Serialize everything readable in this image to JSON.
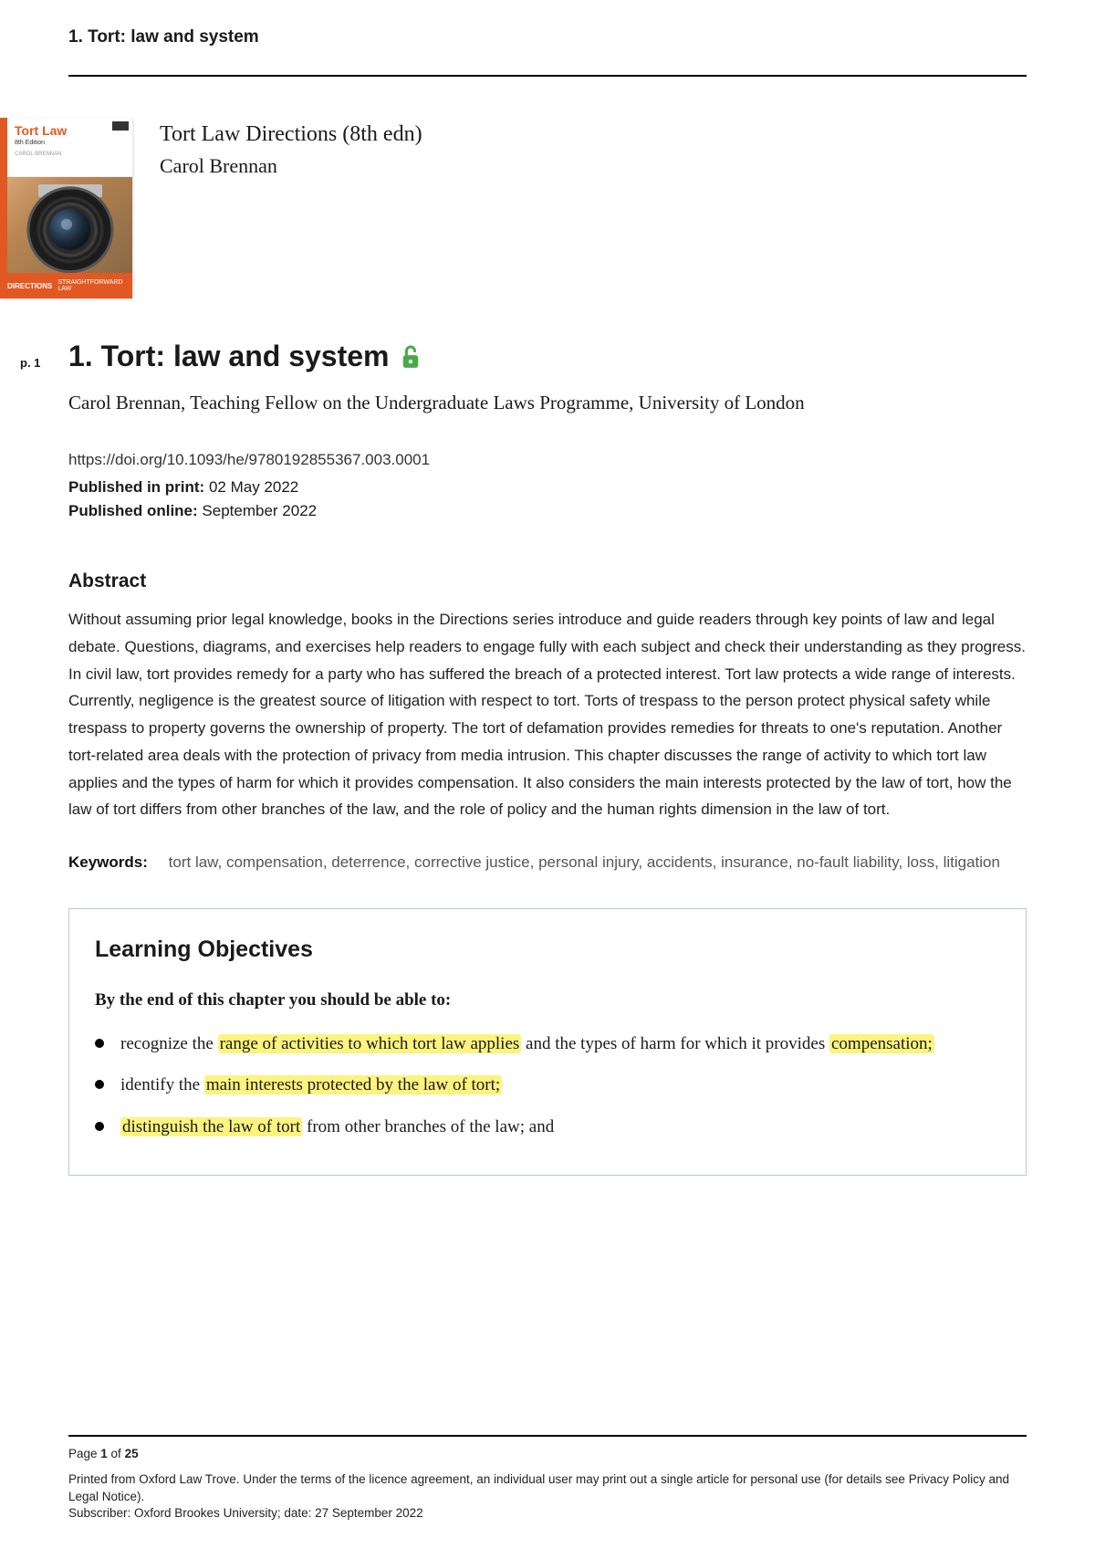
{
  "header": {
    "text": "1. Tort: law and system"
  },
  "book": {
    "title": "Tort Law Directions (8th edn)",
    "author": "Carol Brennan",
    "cover": {
      "title": "Tort Law",
      "edition": "8th Edition",
      "author": "CAROL BRENNAN",
      "series": "DIRECTIONS",
      "tagline": "STRAIGHTFORWARD LAW"
    }
  },
  "page_marker": "p. 1",
  "chapter": {
    "title": "1. Tort: law and system",
    "author_line": "Carol Brennan, Teaching Fellow on the Undergraduate Laws Programme, University of London",
    "doi": "https://doi.org/10.1093/he/9780192855367.003.0001",
    "pub_print_label": "Published in print:",
    "pub_print_value": "02 May 2022",
    "pub_online_label": "Published online:",
    "pub_online_value": "September 2022"
  },
  "abstract": {
    "heading": "Abstract",
    "text": "Without assuming prior legal knowledge, books in the Directions series introduce and guide readers through key points of law and legal debate. Questions, diagrams, and exercises help readers to engage fully with each subject and check their understanding as they progress. In civil law, tort provides remedy for a party who has suffered the breach of a protected interest. Tort law protects a wide range of interests. Currently, negligence is the greatest source of litigation with respect to tort. Torts of trespass to the person protect physical safety while trespass to property governs the ownership of property. The tort of defamation provides remedies for threats to one's reputation. Another tort-related area deals with the protection of privacy from media intrusion. This chapter discusses the range of activity to which tort law applies and the types of harm for which it provides compensation. It also considers the main interests protected by the law of tort, how the law of tort differs from other branches of the law, and the role of policy and the human rights dimension in the law of tort."
  },
  "keywords": {
    "label": "Keywords:",
    "list": [
      "tort law",
      "compensation",
      "deterrence",
      "corrective justice",
      "personal injury",
      "accidents",
      "insurance",
      "no-fault liability",
      "loss",
      "litigation"
    ]
  },
  "objectives": {
    "heading": "Learning Objectives",
    "subheading": "By the end of this chapter you should be able to:",
    "items": [
      {
        "pre": "recognize the ",
        "hl": "range of activities to which tort law applies",
        "mid": " and the types of harm for which it provides ",
        "hl2": "compensation;",
        "post": ""
      },
      {
        "pre": "identify the ",
        "hl": "main interests protected by the law of tort;",
        "mid": "",
        "hl2": "",
        "post": ""
      },
      {
        "pre": "",
        "hl": "distinguish the law of tort",
        "mid": " from other branches of the law; and",
        "hl2": "",
        "post": ""
      }
    ]
  },
  "footer": {
    "page_current": "1",
    "page_total": "25",
    "line1a": "Printed from Oxford Law Trove. Under the terms of the licence agreement, an individual user may print out a single article for personal use (for details see Privacy Policy and Legal Notice).",
    "line2": "Subscriber: Oxford Brookes University; date: 27 September 2022"
  },
  "colors": {
    "highlight": "#fcf47e",
    "lock_icon": "#4aa84a",
    "box_border": "#b9c6e0",
    "cover_accent": "#e25822"
  }
}
